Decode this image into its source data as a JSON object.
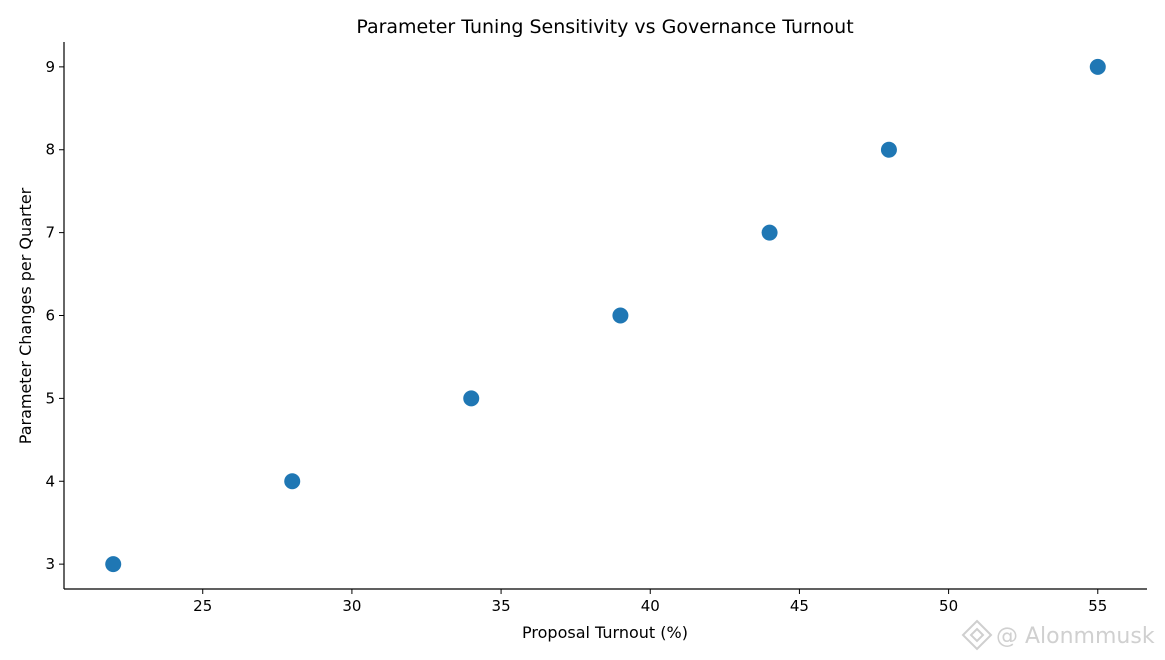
{
  "chart_data": {
    "type": "scatter",
    "title": "Parameter Tuning Sensitivity vs Governance Turnout",
    "xlabel": "Proposal Turnout (%)",
    "ylabel": "Parameter Changes per Quarter",
    "x": [
      22,
      28,
      34,
      39,
      44,
      48,
      55
    ],
    "y": [
      3,
      4,
      5,
      6,
      7,
      8,
      9
    ],
    "xlim": [
      20.35,
      56.65
    ],
    "ylim": [
      2.7,
      9.3
    ],
    "xticks": [
      25,
      30,
      35,
      40,
      45,
      50,
      55
    ],
    "yticks": [
      3,
      4,
      5,
      6,
      7,
      8,
      9
    ],
    "grid": false,
    "marker_color": "#1f77b4"
  },
  "watermark": {
    "text": "@ Alonmmusk",
    "icon": "binance-logo-icon"
  }
}
